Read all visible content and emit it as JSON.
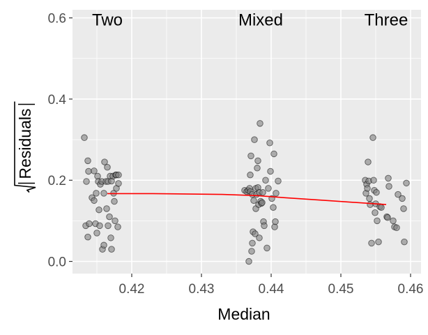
{
  "chart_data": {
    "type": "scatter",
    "xlabel": "Median",
    "ylabel": "Residuals",
    "xlim": [
      0.4115,
      0.4615
    ],
    "ylim": [
      -0.03,
      0.62
    ],
    "x_ticks": [
      {
        "value": 0.42,
        "label": "0.42"
      },
      {
        "value": 0.43,
        "label": "0.43"
      },
      {
        "value": 0.44,
        "label": "0.44"
      },
      {
        "value": 0.45,
        "label": "0.45"
      },
      {
        "value": 0.46,
        "label": "0.46"
      }
    ],
    "y_ticks": [
      {
        "value": 0.0,
        "label": "0.0"
      },
      {
        "value": 0.2,
        "label": "0.2"
      },
      {
        "value": 0.4,
        "label": "0.4"
      },
      {
        "value": 0.6,
        "label": "0.6"
      }
    ],
    "grid": true,
    "group_labels": [
      {
        "text": "Two",
        "x": 0.4165,
        "y": 0.595
      },
      {
        "text": "Mixed",
        "x": 0.4385,
        "y": 0.595
      },
      {
        "text": "Three",
        "x": 0.4565,
        "y": 0.595
      }
    ],
    "points": [
      {
        "x": 0.4132,
        "y": 0.305
      },
      {
        "x": 0.4135,
        "y": 0.197
      },
      {
        "x": 0.4137,
        "y": 0.248
      },
      {
        "x": 0.4138,
        "y": 0.222
      },
      {
        "x": 0.4134,
        "y": 0.088
      },
      {
        "x": 0.4137,
        "y": 0.06
      },
      {
        "x": 0.4139,
        "y": 0.093
      },
      {
        "x": 0.4143,
        "y": 0.157
      },
      {
        "x": 0.4146,
        "y": 0.223
      },
      {
        "x": 0.4146,
        "y": 0.15
      },
      {
        "x": 0.4148,
        "y": 0.093
      },
      {
        "x": 0.4149,
        "y": 0.168
      },
      {
        "x": 0.415,
        "y": 0.07
      },
      {
        "x": 0.4151,
        "y": 0.21
      },
      {
        "x": 0.4152,
        "y": 0.197
      },
      {
        "x": 0.4153,
        "y": 0.127
      },
      {
        "x": 0.4154,
        "y": 0.088
      },
      {
        "x": 0.4155,
        "y": 0.19
      },
      {
        "x": 0.4157,
        "y": 0.197
      },
      {
        "x": 0.4158,
        "y": 0.03
      },
      {
        "x": 0.416,
        "y": 0.04
      },
      {
        "x": 0.416,
        "y": 0.168
      },
      {
        "x": 0.4161,
        "y": 0.245
      },
      {
        "x": 0.4163,
        "y": 0.197
      },
      {
        "x": 0.4164,
        "y": 0.13
      },
      {
        "x": 0.4165,
        "y": 0.232
      },
      {
        "x": 0.4166,
        "y": 0.088
      },
      {
        "x": 0.4166,
        "y": 0.197
      },
      {
        "x": 0.4168,
        "y": 0.11
      },
      {
        "x": 0.4169,
        "y": 0.21
      },
      {
        "x": 0.417,
        "y": 0.058
      },
      {
        "x": 0.4171,
        "y": 0.03
      },
      {
        "x": 0.4171,
        "y": 0.198
      },
      {
        "x": 0.4173,
        "y": 0.21
      },
      {
        "x": 0.4174,
        "y": 0.168
      },
      {
        "x": 0.4175,
        "y": 0.148
      },
      {
        "x": 0.4176,
        "y": 0.1
      },
      {
        "x": 0.4177,
        "y": 0.213
      },
      {
        "x": 0.4178,
        "y": 0.213
      },
      {
        "x": 0.4178,
        "y": 0.18
      },
      {
        "x": 0.418,
        "y": 0.085
      },
      {
        "x": 0.4181,
        "y": 0.192
      },
      {
        "x": 0.4181,
        "y": 0.213
      },
      {
        "x": 0.4362,
        "y": 0.175
      },
      {
        "x": 0.4365,
        "y": 0.172
      },
      {
        "x": 0.4367,
        "y": 0.175
      },
      {
        "x": 0.4368,
        "y": 0.0
      },
      {
        "x": 0.4369,
        "y": 0.18
      },
      {
        "x": 0.437,
        "y": 0.213
      },
      {
        "x": 0.437,
        "y": 0.172
      },
      {
        "x": 0.4371,
        "y": 0.26
      },
      {
        "x": 0.4372,
        "y": 0.025
      },
      {
        "x": 0.4373,
        "y": 0.165
      },
      {
        "x": 0.4373,
        "y": 0.045
      },
      {
        "x": 0.4374,
        "y": 0.073
      },
      {
        "x": 0.4375,
        "y": 0.15
      },
      {
        "x": 0.4376,
        "y": 0.3
      },
      {
        "x": 0.4377,
        "y": 0.068
      },
      {
        "x": 0.4378,
        "y": 0.18
      },
      {
        "x": 0.4378,
        "y": 0.13
      },
      {
        "x": 0.4379,
        "y": 0.165
      },
      {
        "x": 0.438,
        "y": 0.23
      },
      {
        "x": 0.4381,
        "y": 0.182
      },
      {
        "x": 0.4381,
        "y": 0.248
      },
      {
        "x": 0.4382,
        "y": 0.14
      },
      {
        "x": 0.4383,
        "y": 0.058
      },
      {
        "x": 0.4383,
        "y": 0.17
      },
      {
        "x": 0.4384,
        "y": 0.34
      },
      {
        "x": 0.4385,
        "y": 0.148
      },
      {
        "x": 0.4386,
        "y": 0.143
      },
      {
        "x": 0.4387,
        "y": 0.145
      },
      {
        "x": 0.4388,
        "y": 0.17
      },
      {
        "x": 0.4389,
        "y": 0.098
      },
      {
        "x": 0.439,
        "y": 0.088
      },
      {
        "x": 0.4392,
        "y": 0.2
      },
      {
        "x": 0.4394,
        "y": 0.033
      },
      {
        "x": 0.4396,
        "y": 0.18
      },
      {
        "x": 0.4398,
        "y": 0.292
      },
      {
        "x": 0.4399,
        "y": 0.222
      },
      {
        "x": 0.4401,
        "y": 0.155
      },
      {
        "x": 0.4403,
        "y": 0.133
      },
      {
        "x": 0.4404,
        "y": 0.265
      },
      {
        "x": 0.4405,
        "y": 0.085
      },
      {
        "x": 0.4406,
        "y": 0.098
      },
      {
        "x": 0.4407,
        "y": 0.168
      },
      {
        "x": 0.441,
        "y": 0.198
      },
      {
        "x": 0.4535,
        "y": 0.2
      },
      {
        "x": 0.4536,
        "y": 0.168
      },
      {
        "x": 0.4537,
        "y": 0.19
      },
      {
        "x": 0.4538,
        "y": 0.18
      },
      {
        "x": 0.4539,
        "y": 0.245
      },
      {
        "x": 0.454,
        "y": 0.198
      },
      {
        "x": 0.4541,
        "y": 0.155
      },
      {
        "x": 0.4542,
        "y": 0.14
      },
      {
        "x": 0.4544,
        "y": 0.045
      },
      {
        "x": 0.4546,
        "y": 0.305
      },
      {
        "x": 0.4547,
        "y": 0.2
      },
      {
        "x": 0.4548,
        "y": 0.175
      },
      {
        "x": 0.4549,
        "y": 0.12
      },
      {
        "x": 0.455,
        "y": 0.142
      },
      {
        "x": 0.4551,
        "y": 0.17
      },
      {
        "x": 0.4552,
        "y": 0.1
      },
      {
        "x": 0.4554,
        "y": 0.048
      },
      {
        "x": 0.4556,
        "y": 0.135
      },
      {
        "x": 0.4558,
        "y": 0.133
      },
      {
        "x": 0.4566,
        "y": 0.11
      },
      {
        "x": 0.4567,
        "y": 0.108
      },
      {
        "x": 0.4568,
        "y": 0.205
      },
      {
        "x": 0.4569,
        "y": 0.185
      },
      {
        "x": 0.4575,
        "y": 0.1
      },
      {
        "x": 0.4577,
        "y": 0.085
      },
      {
        "x": 0.458,
        "y": 0.083
      },
      {
        "x": 0.4582,
        "y": 0.165
      },
      {
        "x": 0.4588,
        "y": 0.155
      },
      {
        "x": 0.459,
        "y": 0.13
      },
      {
        "x": 0.4591,
        "y": 0.048
      },
      {
        "x": 0.4594,
        "y": 0.193
      }
    ],
    "trend_line": [
      {
        "x": 0.4165,
        "y": 0.167
      },
      {
        "x": 0.423,
        "y": 0.167
      },
      {
        "x": 0.433,
        "y": 0.165
      },
      {
        "x": 0.438,
        "y": 0.162
      },
      {
        "x": 0.442,
        "y": 0.157
      },
      {
        "x": 0.448,
        "y": 0.15
      },
      {
        "x": 0.4565,
        "y": 0.14
      }
    ],
    "colors": {
      "panel": "#ebebeb",
      "grid": "#ffffff",
      "point_fill": "#808080",
      "point_stroke": "#000000",
      "trend": "#ff0000",
      "tick_label": "#4d4d4d",
      "tick_mark": "#333333"
    }
  }
}
